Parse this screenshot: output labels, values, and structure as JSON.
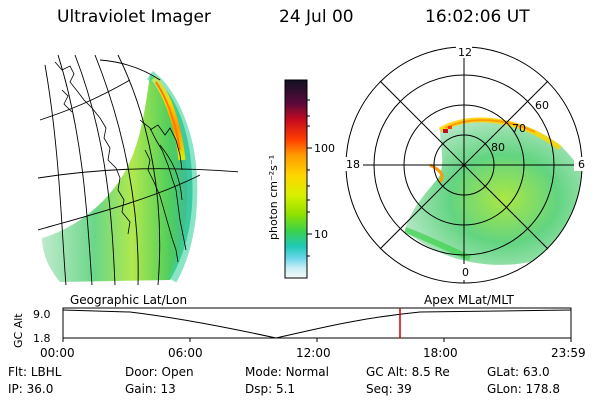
{
  "header": {
    "instrument": "Ultraviolet Imager",
    "date": "24 Jul 00",
    "time": "16:02:06 UT"
  },
  "colorbar": {
    "unit_label": "photon cm⁻²s⁻¹",
    "ticks": [
      "100",
      "10"
    ],
    "scale": "log",
    "colors": [
      "#111122",
      "#5a0a3a",
      "#c40a20",
      "#ff3d00",
      "#ff9a00",
      "#ffd500",
      "#d9f000",
      "#8fe000",
      "#3cd24a",
      "#20c8b8",
      "#6ad6ea",
      "#c9eef6",
      "#f4f8fa"
    ]
  },
  "left_panel": {
    "caption": "Geographic Lat/Lon"
  },
  "right_panel": {
    "caption": "Apex MLat/MLT",
    "mlt_labels": [
      "12",
      "18",
      "6",
      "0"
    ],
    "mlat_labels": [
      "60",
      "70",
      "80"
    ]
  },
  "timeline": {
    "y_label": "GC Alt",
    "y_ticks": [
      "9.0",
      "1.8"
    ],
    "x_ticks": [
      "00:00",
      "06:00",
      "12:00",
      "18:00",
      "23:59"
    ],
    "marker_color": "#cc0000"
  },
  "info": [
    {
      "label": "Flt:",
      "value": "LBHL"
    },
    {
      "label": "Door:",
      "value": "Open"
    },
    {
      "label": "Mode:",
      "value": "Normal"
    },
    {
      "label": "GC Alt:",
      "value": "8.5 Re"
    },
    {
      "label": "GLat:",
      "value": "63.0"
    },
    {
      "label": "IP:",
      "value": "36.0"
    },
    {
      "label": "Gain:",
      "value": "13"
    },
    {
      "label": "Dsp:",
      "value": "5.1"
    },
    {
      "label": "Seq:",
      "value": "39"
    },
    {
      "label": "GLon:",
      "value": "178.8"
    }
  ]
}
